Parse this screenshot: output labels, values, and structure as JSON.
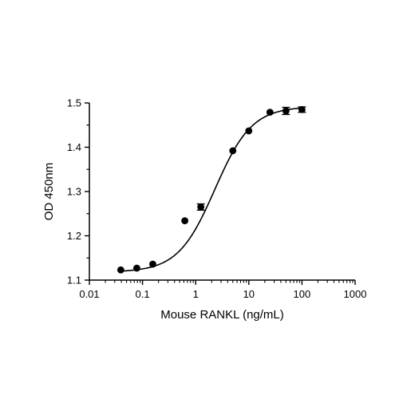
{
  "chart_data": {
    "type": "scatter",
    "xscale": "log",
    "xlabel": "Mouse RANKL (ng/mL)",
    "ylabel": "OD 450nm",
    "xlim": [
      0.01,
      1000
    ],
    "ylim": [
      1.1,
      1.5
    ],
    "x_ticks": [
      0.01,
      0.1,
      1,
      10,
      100,
      1000
    ],
    "x_tick_labels": [
      "0.01",
      "0.1",
      "1",
      "10",
      "100",
      "1000"
    ],
    "y_ticks": [
      1.1,
      1.2,
      1.3,
      1.4,
      1.5
    ],
    "y_tick_labels": [
      "1.1",
      "1.2",
      "1.3",
      "1.4",
      "1.5"
    ],
    "grid": false,
    "legend": "none",
    "series": [
      {
        "x": [
          0.039,
          0.078,
          0.156,
          0.625,
          1.25,
          5,
          10,
          25,
          50,
          100
        ],
        "y": [
          1.123,
          1.127,
          1.136,
          1.234,
          1.265,
          1.392,
          1.437,
          1.479,
          1.482,
          1.485
        ],
        "error": [
          0,
          0,
          0,
          0,
          0.007,
          0,
          0,
          0,
          0.008,
          0.006
        ]
      }
    ],
    "fit_curve": {
      "model": "4PL",
      "bottom": 1.118,
      "top": 1.492,
      "ec50": 2.3,
      "hill": 1.25
    }
  },
  "colors": {
    "marks": "#000000",
    "background": "#ffffff"
  }
}
